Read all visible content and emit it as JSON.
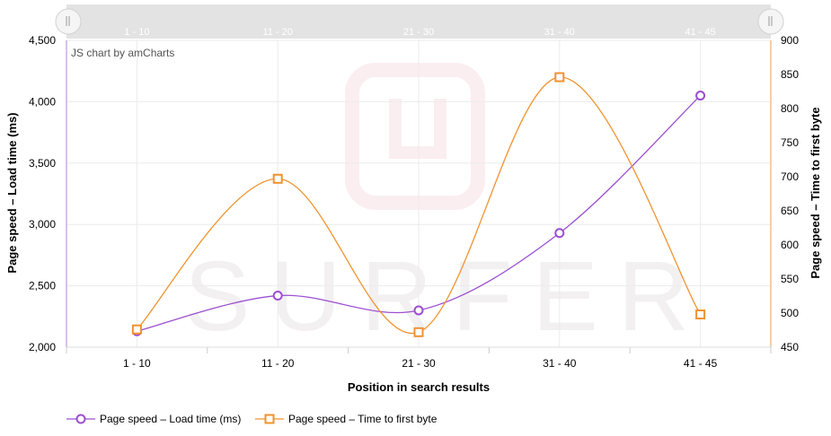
{
  "chart_data": {
    "type": "line",
    "smoothed": true,
    "categories": [
      "1 - 10",
      "11 - 20",
      "21 - 30",
      "31 - 40",
      "41 - 45"
    ],
    "xlabel": "Position in search results",
    "credit": "JS chart by amCharts",
    "watermark": "SURFER",
    "grid": true,
    "legend_position": "bottom-left",
    "y_left": {
      "label": "Page speed – Load time (ms)",
      "min": 2000,
      "max": 4500,
      "ticks": [
        2000,
        2500,
        3000,
        3500,
        4000,
        4500
      ],
      "tick_labels": [
        "2,000",
        "2,500",
        "3,000",
        "3,500",
        "4,000",
        "4,500"
      ]
    },
    "y_right": {
      "label": "Page speed – Time to first byte",
      "min": 450,
      "max": 900,
      "ticks": [
        450,
        500,
        550,
        600,
        650,
        700,
        750,
        800,
        850,
        900
      ],
      "tick_labels": [
        "450",
        "500",
        "550",
        "600",
        "650",
        "700",
        "750",
        "800",
        "850",
        "900"
      ]
    },
    "series": [
      {
        "name": "Page speed – Load time (ms)",
        "axis": "left",
        "color": "#9b4fd0",
        "marker": "circle",
        "values": [
          2130,
          2420,
          2300,
          2930,
          4050
        ]
      },
      {
        "name": "Page speed – Time to first byte",
        "axis": "right",
        "color": "#f0932e",
        "marker": "square",
        "values": [
          476,
          697,
          472,
          846,
          498
        ]
      }
    ],
    "scrollbar_labels": [
      "1 - 10",
      "11 - 20",
      "21 - 30",
      "31 - 40",
      "41 - 45"
    ]
  }
}
